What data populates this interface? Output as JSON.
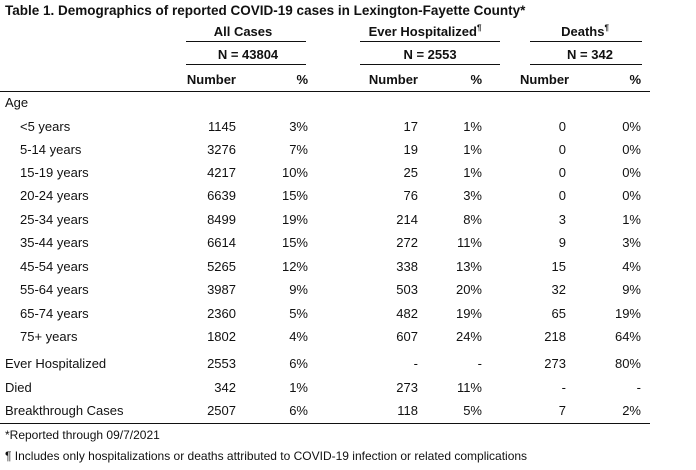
{
  "title": "Table 1. Demographics of reported COVID-19 cases in Lexington-Fayette County",
  "title_mark": "*",
  "groups": [
    {
      "name": "All Cases",
      "mark": "",
      "n": "N = 43804"
    },
    {
      "name": "Ever Hospitalized",
      "mark": "¶",
      "n": "N = 2553"
    },
    {
      "name": "Deaths",
      "mark": "¶",
      "n": "N = 342"
    }
  ],
  "col_number": "Number",
  "col_pct": "%",
  "age_label": "Age",
  "age_rows": [
    {
      "label": "<5 years",
      "v": [
        "1145",
        "3%",
        "17",
        "1%",
        "0",
        "0%"
      ]
    },
    {
      "label": "5-14 years",
      "v": [
        "3276",
        "7%",
        "19",
        "1%",
        "0",
        "0%"
      ]
    },
    {
      "label": "15-19 years",
      "v": [
        "4217",
        "10%",
        "25",
        "1%",
        "0",
        "0%"
      ]
    },
    {
      "label": "20-24 years",
      "v": [
        "6639",
        "15%",
        "76",
        "3%",
        "0",
        "0%"
      ]
    },
    {
      "label": "25-34 years",
      "v": [
        "8499",
        "19%",
        "214",
        "8%",
        "3",
        "1%"
      ]
    },
    {
      "label": "35-44 years",
      "v": [
        "6614",
        "15%",
        "272",
        "11%",
        "9",
        "3%"
      ]
    },
    {
      "label": "45-54 years",
      "v": [
        "5265",
        "12%",
        "338",
        "13%",
        "15",
        "4%"
      ]
    },
    {
      "label": "55-64 years",
      "v": [
        "3987",
        "9%",
        "503",
        "20%",
        "32",
        "9%"
      ]
    },
    {
      "label": "65-74 years",
      "v": [
        "2360",
        "5%",
        "482",
        "19%",
        "65",
        "19%"
      ]
    },
    {
      "label": "75+ years",
      "v": [
        "1802",
        "4%",
        "607",
        "24%",
        "218",
        "64%"
      ]
    }
  ],
  "summary_rows": [
    {
      "label": "Ever Hospitalized",
      "v": [
        "2553",
        "6%",
        "-",
        "-",
        "273",
        "80%"
      ]
    },
    {
      "label": "Died",
      "v": [
        "342",
        "1%",
        "273",
        "11%",
        "-",
        "-"
      ]
    },
    {
      "label": "Breakthrough Cases",
      "v": [
        "2507",
        "6%",
        "118",
        "5%",
        "7",
        "2%"
      ]
    }
  ],
  "footnotes": [
    "*Reported through 09/7/2021",
    "¶ Includes only hospitalizations or deaths attributed to COVID-19 infection or related complications"
  ]
}
